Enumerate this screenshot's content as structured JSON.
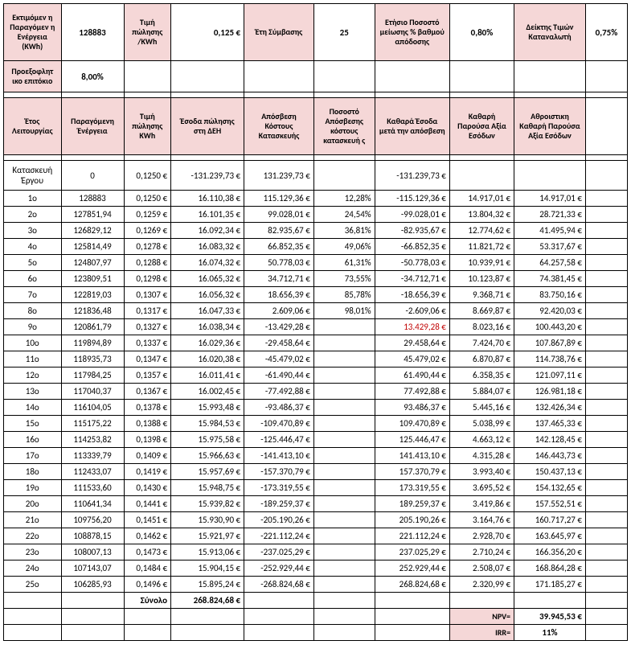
{
  "params": {
    "row1": {
      "l0": "Εκτιμόμεν η Παραγόμεν η Ενέργεια (KWh)",
      "v0": "128883",
      "l1": "Τιμή πώλησης /KWh",
      "v1": "0,125 €",
      "l2": "Έτη Σύμβασης",
      "v2": "25",
      "l3": "Ετήσιο Ποσοστό μείωσης % βαθμού απόδοσης",
      "v3": "0,80%",
      "l4": "Δείκτης Τιμών Καταναλωτή",
      "v4": "0,75%"
    },
    "row2": {
      "l0": "Προεξοφλητ ικο επιτόκιο",
      "v0": "8,00%"
    }
  },
  "headers": {
    "c0": "Έτος Λειτουργίας",
    "c1": "Παραγόμενη Ένέργεια",
    "c2": "Τιμή πώλησης KWh",
    "c3": "Έσοδα πώλησης στη ΔΕΗ",
    "c4": "Απόσβεση Κόστους Κατασκευής",
    "c5": "Ποσοστό Απόσβεσης κόστους κατασκευή ς",
    "c6": "Καθαρά Έσοδα μετά την απόσβεση",
    "c7": "Καθαρή Παρούσα Αξία Εσόδων",
    "c8": "Αθροιστικη Καθαρή Παρούσα Αξία Εσόδων"
  },
  "rows": [
    {
      "y": "Κατασκευή Έργου",
      "en": "0",
      "pr": "0,1250 €",
      "inc": "-131.239,73 €",
      "dep": "131.239,73 €",
      "pct": "",
      "net": "-131.239,73 €",
      "npv": "",
      "cum": "",
      "red": false
    },
    {
      "y": "1o",
      "en": "128883",
      "pr": "0,1250 €",
      "inc": "16.110,38 €",
      "dep": "115.129,36 €",
      "pct": "12,28%",
      "net": "-115.129,36 €",
      "npv": "14.917,01 €",
      "cum": "14.917,01 €",
      "red": false
    },
    {
      "y": "2o",
      "en": "127851,94",
      "pr": "0,1259 €",
      "inc": "16.101,35 €",
      "dep": "99.028,01 €",
      "pct": "24,54%",
      "net": "-99.028,01 €",
      "npv": "13.804,32 €",
      "cum": "28.721,33 €",
      "red": false
    },
    {
      "y": "3o",
      "en": "126829,12",
      "pr": "0,1269 €",
      "inc": "16.092,34 €",
      "dep": "82.935,67 €",
      "pct": "36,81%",
      "net": "-82.935,67 €",
      "npv": "12.774,62 €",
      "cum": "41.495,94 €",
      "red": false
    },
    {
      "y": "4o",
      "en": "125814,49",
      "pr": "0,1278 €",
      "inc": "16.083,32 €",
      "dep": "66.852,35 €",
      "pct": "49,06%",
      "net": "-66.852,35 €",
      "npv": "11.821,72 €",
      "cum": "53.317,67 €",
      "red": false
    },
    {
      "y": "5o",
      "en": "124807,97",
      "pr": "0,1288 €",
      "inc": "16.074,32 €",
      "dep": "50.778,03 €",
      "pct": "61,31%",
      "net": "-50.778,03 €",
      "npv": "10.939,91 €",
      "cum": "64.257,58 €",
      "red": false
    },
    {
      "y": "6o",
      "en": "123809,51",
      "pr": "0,1298 €",
      "inc": "16.065,32 €",
      "dep": "34.712,71 €",
      "pct": "73,55%",
      "net": "-34.712,71 €",
      "npv": "10.123,87 €",
      "cum": "74.381,45 €",
      "red": false
    },
    {
      "y": "7o",
      "en": "122819,03",
      "pr": "0,1307 €",
      "inc": "16.056,32 €",
      "dep": "18.656,39 €",
      "pct": "85,78%",
      "net": "-18.656,39 €",
      "npv": "9.368,71 €",
      "cum": "83.750,16 €",
      "red": false
    },
    {
      "y": "8o",
      "en": "121836,48",
      "pr": "0,1317 €",
      "inc": "16.047,33 €",
      "dep": "2.609,06 €",
      "pct": "98,01%",
      "net": "-2.609,06 €",
      "npv": "8.669,87 €",
      "cum": "92.420,03 €",
      "red": false
    },
    {
      "y": "9o",
      "en": "120861,79",
      "pr": "0,1327 €",
      "inc": "16.038,34 €",
      "dep": "-13.429,28 €",
      "pct": "",
      "net": "13.429,28 €",
      "npv": "8.023,16 €",
      "cum": "100.443,20 €",
      "red": true
    },
    {
      "y": "10o",
      "en": "119894,89",
      "pr": "0,1337 €",
      "inc": "16.029,36 €",
      "dep": "-29.458,64 €",
      "pct": "",
      "net": "29.458,64 €",
      "npv": "7.424,70 €",
      "cum": "107.867,89 €",
      "red": false
    },
    {
      "y": "11o",
      "en": "118935,73",
      "pr": "0,1347 €",
      "inc": "16.020,38 €",
      "dep": "-45.479,02 €",
      "pct": "",
      "net": "45.479,02 €",
      "npv": "6.870,87 €",
      "cum": "114.738,76 €",
      "red": false
    },
    {
      "y": "12o",
      "en": "117984,25",
      "pr": "0,1357 €",
      "inc": "16.011,41 €",
      "dep": "-61.490,44 €",
      "pct": "",
      "net": "61.490,44 €",
      "npv": "6.358,35 €",
      "cum": "121.097,11 €",
      "red": false
    },
    {
      "y": "13o",
      "en": "117040,37",
      "pr": "0,1367 €",
      "inc": "16.002,45 €",
      "dep": "-77.492,88 €",
      "pct": "",
      "net": "77.492,88 €",
      "npv": "5.884,07 €",
      "cum": "126.981,18 €",
      "red": false
    },
    {
      "y": "14o",
      "en": "116104,05",
      "pr": "0,1378 €",
      "inc": "15.993,48 €",
      "dep": "-93.486,37 €",
      "pct": "",
      "net": "93.486,37 €",
      "npv": "5.445,16 €",
      "cum": "132.426,34 €",
      "red": false
    },
    {
      "y": "15o",
      "en": "115175,22",
      "pr": "0,1388 €",
      "inc": "15.984,53 €",
      "dep": "-109.470,89 €",
      "pct": "",
      "net": "109.470,89 €",
      "npv": "5.038,99 €",
      "cum": "137.465,33 €",
      "red": false
    },
    {
      "y": "16o",
      "en": "114253,82",
      "pr": "0,1398 €",
      "inc": "15.975,58 €",
      "dep": "-125.446,47 €",
      "pct": "",
      "net": "125.446,47 €",
      "npv": "4.663,12 €",
      "cum": "142.128,45 €",
      "red": false
    },
    {
      "y": "17o",
      "en": "113339,79",
      "pr": "0,1409 €",
      "inc": "15.966,63 €",
      "dep": "-141.413,10 €",
      "pct": "",
      "net": "141.413,10 €",
      "npv": "4.315,28 €",
      "cum": "146.443,73 €",
      "red": false
    },
    {
      "y": "18o",
      "en": "112433,07",
      "pr": "0,1419 €",
      "inc": "15.957,69 €",
      "dep": "-157.370,79 €",
      "pct": "",
      "net": "157.370,79 €",
      "npv": "3.993,40 €",
      "cum": "150.437,13 €",
      "red": false
    },
    {
      "y": "19o",
      "en": "111533,60",
      "pr": "0,1430 €",
      "inc": "15.948,75 €",
      "dep": "-173.319,55 €",
      "pct": "",
      "net": "173.319,55 €",
      "npv": "3.695,52 €",
      "cum": "154.132,65 €",
      "red": false
    },
    {
      "y": "20o",
      "en": "110641,34",
      "pr": "0,1441 €",
      "inc": "15.939,82 €",
      "dep": "-189.259,37 €",
      "pct": "",
      "net": "189.259,37 €",
      "npv": "3.419,86 €",
      "cum": "157.552,51 €",
      "red": false
    },
    {
      "y": "21o",
      "en": "109756,20",
      "pr": "0,1451 €",
      "inc": "15.930,90 €",
      "dep": "-205.190,26 €",
      "pct": "",
      "net": "205.190,26 €",
      "npv": "3.164,76 €",
      "cum": "160.717,27 €",
      "red": false
    },
    {
      "y": "22o",
      "en": "108878,15",
      "pr": "0,1462 €",
      "inc": "15.921,97 €",
      "dep": "-221.112,24 €",
      "pct": "",
      "net": "221.112,24 €",
      "npv": "2.928,70 €",
      "cum": "163.645,97 €",
      "red": false
    },
    {
      "y": "23o",
      "en": "108007,13",
      "pr": "0,1473 €",
      "inc": "15.913,06 €",
      "dep": "-237.025,29 €",
      "pct": "",
      "net": "237.025,29 €",
      "npv": "2.710,24 €",
      "cum": "166.356,20 €",
      "red": false
    },
    {
      "y": "24o",
      "en": "107143,07",
      "pr": "0,1484 €",
      "inc": "15.904,15 €",
      "dep": "-252.929,44 €",
      "pct": "",
      "net": "252.929,44 €",
      "npv": "2.508,07 €",
      "cum": "168.864,28 €",
      "red": false
    },
    {
      "y": "25o",
      "en": "106285,93",
      "pr": "0,1496 €",
      "inc": "15.895,24 €",
      "dep": "-268.824,68 €",
      "pct": "",
      "net": "268.824,68 €",
      "npv": "2.320,99 €",
      "cum": "171.185,27 €",
      "red": false
    }
  ],
  "totals": {
    "label": "Σύνολο",
    "total_inc": "268.824,68 €",
    "npv_label": "NPV=",
    "npv_value": "39.945,53 €",
    "irr_label": "IRR=",
    "irr_value": "11%"
  },
  "style": {
    "header_bg": "#f5d7d7",
    "border_color": "#000000",
    "red_text": "#c00000",
    "font_size_body": 11,
    "font_size_header": 10
  }
}
